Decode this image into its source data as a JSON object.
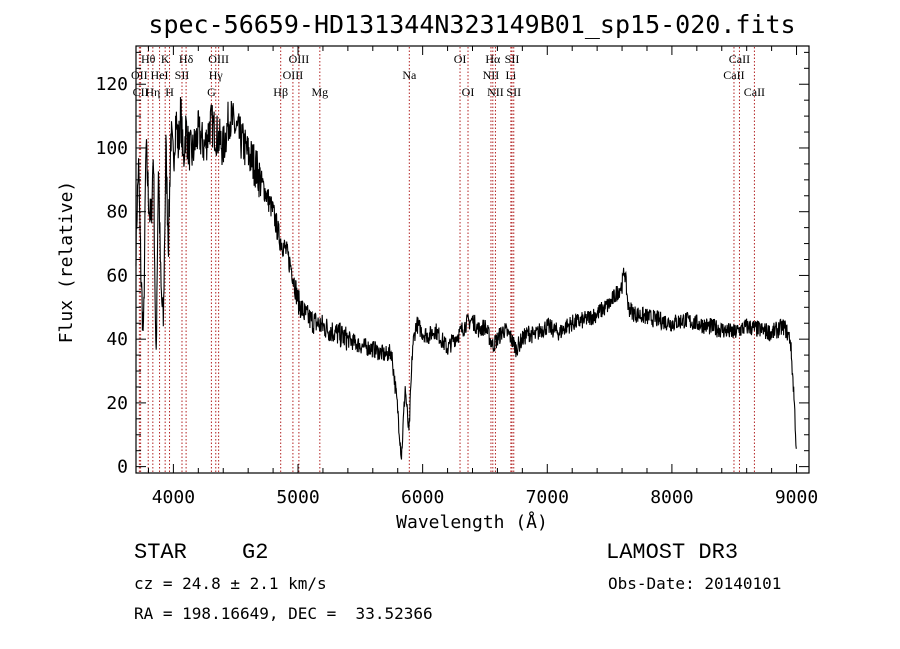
{
  "chart_data": {
    "type": "line",
    "title": "spec-56659-HD131344N323149B01_sp15-020.fits",
    "xlabel": "Wavelength (Å)",
    "ylabel": "Flux (relative)",
    "xlim": [
      3700,
      9100
    ],
    "ylim": [
      -2,
      132
    ],
    "xticks": [
      4000,
      5000,
      6000,
      7000,
      8000,
      9000
    ],
    "yticks": [
      0,
      20,
      40,
      60,
      80,
      100,
      120
    ],
    "grid": false,
    "series": [
      {
        "x": [
          3700,
          3720,
          3740,
          3760,
          3780,
          3800,
          3820,
          3840,
          3860,
          3880,
          3900,
          3920,
          3940,
          3960,
          3980,
          4000,
          4020,
          4040,
          4060,
          4080,
          4100,
          4120,
          4150,
          4200,
          4250,
          4300,
          4350,
          4400,
          4450,
          4500,
          4550,
          4600,
          4650,
          4700,
          4750,
          4800,
          4850,
          4900,
          4950,
          5000,
          5050,
          5100,
          5200,
          5300,
          5400,
          5500,
          5600,
          5700,
          5750,
          5800,
          5830,
          5860,
          5890,
          5920,
          5950,
          6000,
          6050,
          6100,
          6150,
          6200,
          6250,
          6300,
          6350,
          6400,
          6450,
          6500,
          6563,
          6600,
          6650,
          6700,
          6750,
          6800,
          6850,
          6900,
          6950,
          7000,
          7050,
          7100,
          7150,
          7200,
          7300,
          7400,
          7500,
          7550,
          7600,
          7620,
          7650,
          7700,
          7800,
          7900,
          8000,
          8100,
          8200,
          8300,
          8400,
          8500,
          8600,
          8700,
          8800,
          8900,
          8950,
          8980,
          9000
        ],
        "y": [
          70,
          95,
          60,
          40,
          100,
          85,
          75,
          100,
          30,
          95,
          55,
          45,
          100,
          70,
          105,
          95,
          110,
          100,
          112,
          95,
          107,
          100,
          98,
          105,
          100,
          108,
          104,
          100,
          110,
          106,
          102,
          98,
          95,
          90,
          85,
          80,
          72,
          68,
          62,
          52,
          48,
          46,
          44,
          42,
          40,
          38,
          37,
          35,
          36,
          18,
          3,
          25,
          10,
          38,
          45,
          42,
          41,
          43,
          40,
          37,
          40,
          42,
          45,
          46,
          43,
          44,
          38,
          40,
          43,
          41,
          37,
          40,
          42,
          41,
          43,
          44,
          43,
          42,
          44,
          45,
          46,
          48,
          51,
          54,
          57,
          62,
          50,
          48,
          47,
          46,
          45,
          46,
          45,
          44,
          43,
          42,
          44,
          43,
          42,
          44,
          40,
          22,
          4
        ]
      }
    ],
    "line_annotations": [
      {
        "label": "Hθ",
        "x": 3798,
        "row": 1
      },
      {
        "label": "OII",
        "x": 3727,
        "row": 2
      },
      {
        "label": "CII",
        "x": 3737,
        "row": 3
      },
      {
        "label": "K",
        "x": 3934,
        "row": 1
      },
      {
        "label": "HeI",
        "x": 3889,
        "row": 2
      },
      {
        "label": "Hη",
        "x": 3835,
        "row": 3
      },
      {
        "label": "H",
        "x": 3969,
        "row": 3
      },
      {
        "label": "SII",
        "x": 4069,
        "row": 2
      },
      {
        "label": "Hδ",
        "x": 4102,
        "row": 1
      },
      {
        "label": "OIII",
        "x": 4363,
        "row": 1
      },
      {
        "label": "Hγ",
        "x": 4340,
        "row": 2
      },
      {
        "label": "G",
        "x": 4305,
        "row": 3
      },
      {
        "label": "Hβ",
        "x": 4861,
        "row": 3
      },
      {
        "label": "OIII",
        "x": 5007,
        "row": 1
      },
      {
        "label": "OIII",
        "x": 4959,
        "row": 2
      },
      {
        "label": "Mg",
        "x": 5175,
        "row": 3
      },
      {
        "label": "Na",
        "x": 5893,
        "row": 2
      },
      {
        "label": "OI",
        "x": 6300,
        "row": 1
      },
      {
        "label": "OI",
        "x": 6364,
        "row": 3
      },
      {
        "label": "Hα",
        "x": 6563,
        "row": 1
      },
      {
        "label": "SII",
        "x": 6717,
        "row": 1
      },
      {
        "label": "NII",
        "x": 6548,
        "row": 2
      },
      {
        "label": "Li",
        "x": 6708,
        "row": 2
      },
      {
        "label": "NII",
        "x": 6584,
        "row": 3
      },
      {
        "label": "SII",
        "x": 6731,
        "row": 3
      },
      {
        "label": "CaII",
        "x": 8542,
        "row": 1
      },
      {
        "label": "CaII",
        "x": 8498,
        "row": 2
      },
      {
        "label": "CaII",
        "x": 8662,
        "row": 3
      }
    ]
  },
  "info": {
    "object_class": "STAR",
    "subclass": "G2",
    "survey": "LAMOST DR3",
    "redshift_line": "cz = 24.8 ± 2.1 km/s",
    "obs_date": "Obs-Date: 20140101",
    "coords": "RA = 198.16649, DEC =  33.52366"
  },
  "colors": {
    "spectrum": "#000000",
    "line_markers": "#b22222",
    "background": "#ffffff"
  }
}
